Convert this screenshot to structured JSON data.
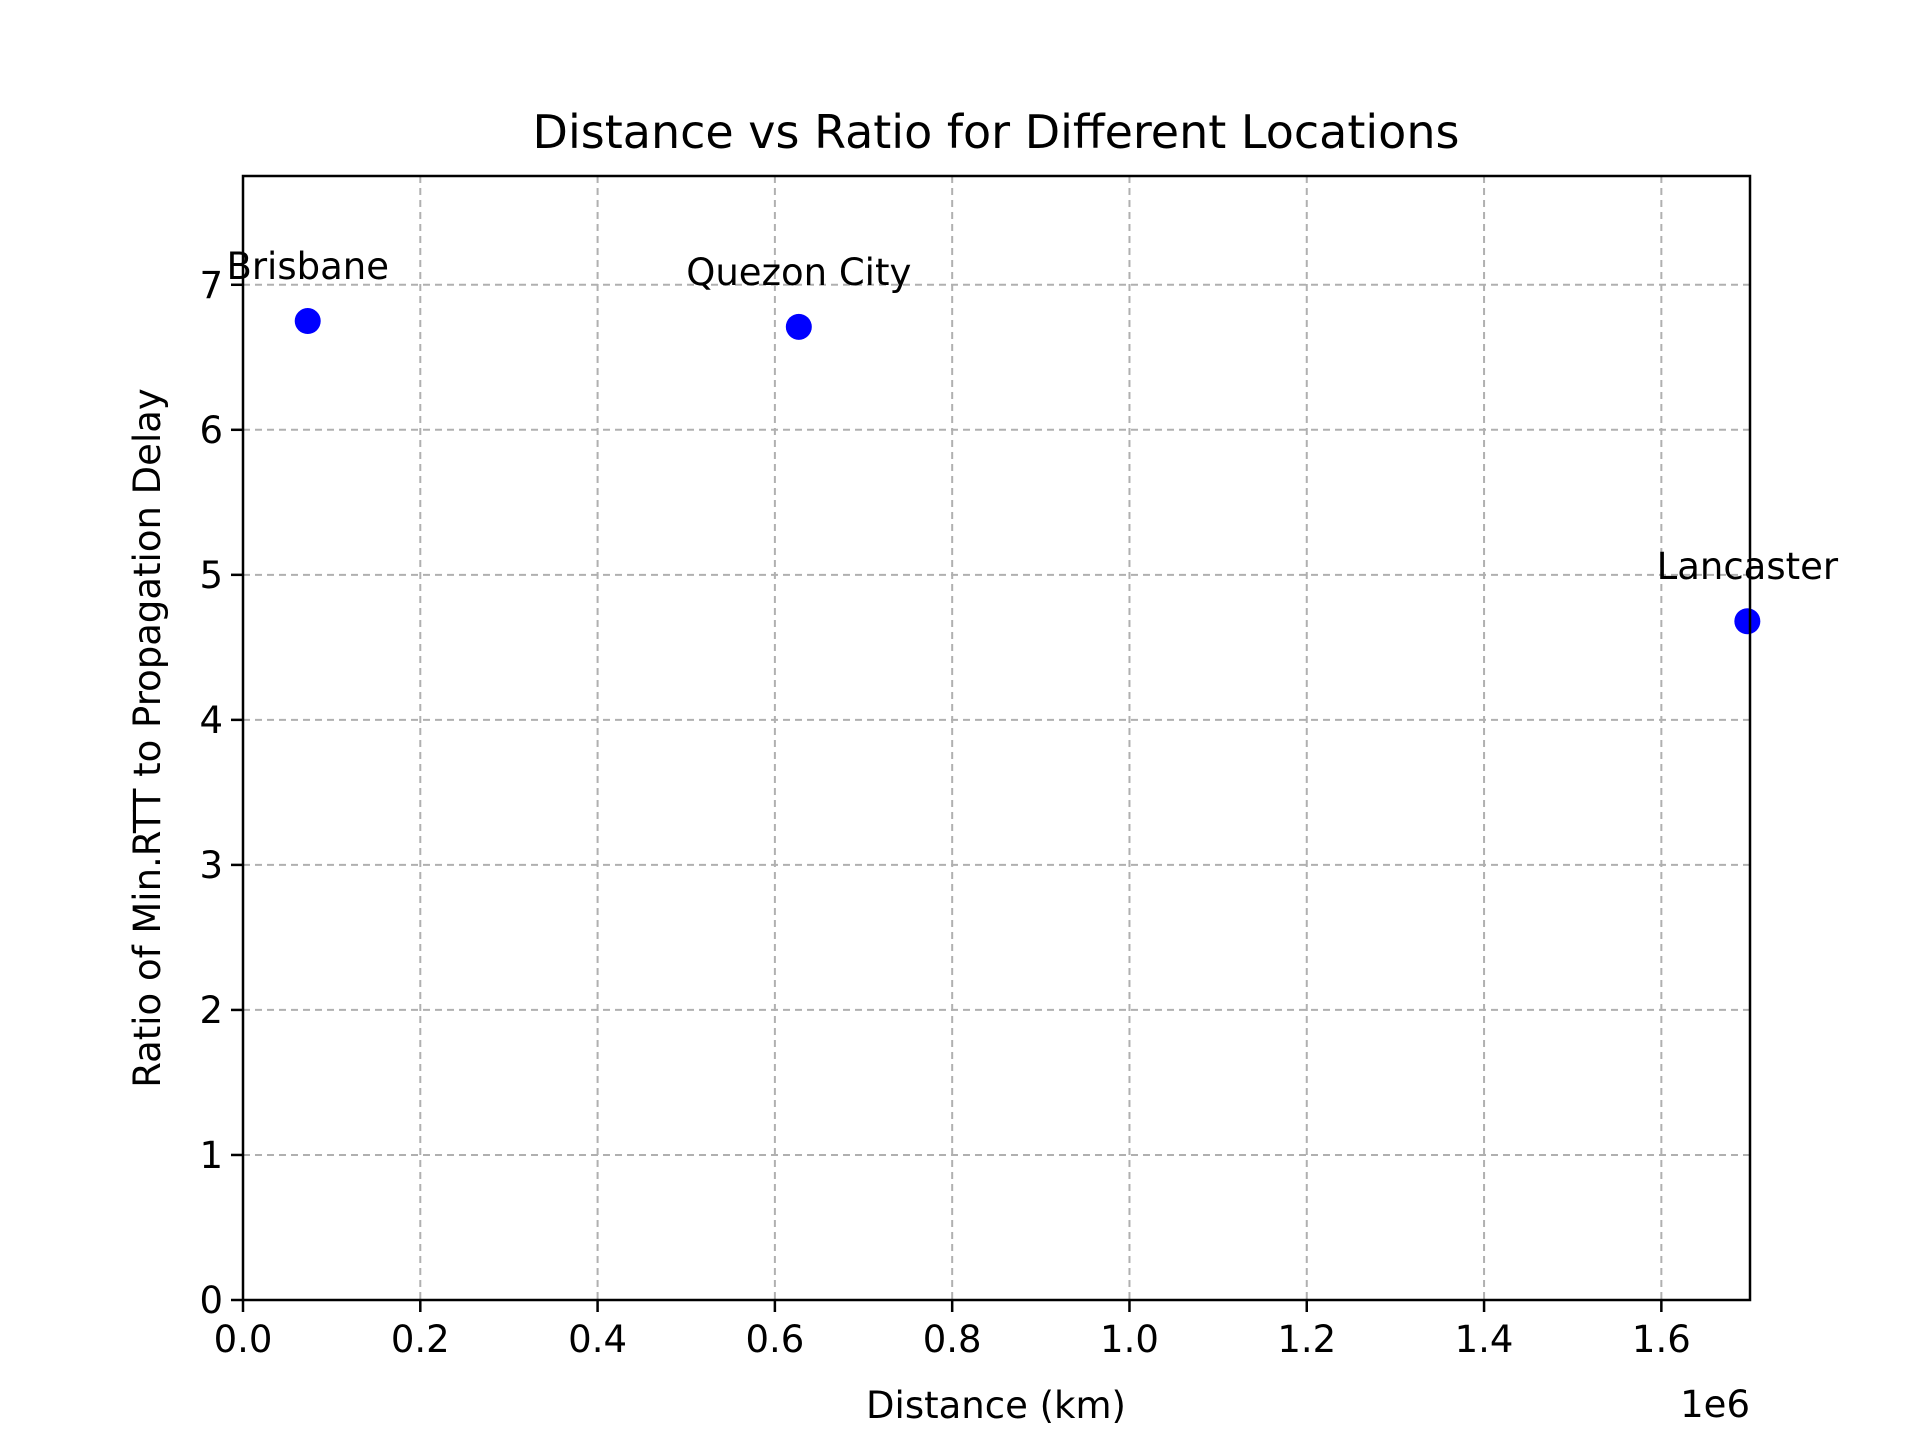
{
  "chart_data": {
    "type": "scatter",
    "title": "Distance vs Ratio for Different Locations",
    "xlabel": "Distance (km)",
    "ylabel": "Ratio of Min.RTT to Propagation Delay",
    "x_offset_text": "1e6",
    "xlim": [
      0,
      1700000
    ],
    "ylim": [
      0,
      7.75
    ],
    "xticks": [
      0,
      200000,
      400000,
      600000,
      800000,
      1000000,
      1200000,
      1400000,
      1600000
    ],
    "xtick_labels": [
      "0.0",
      "0.2",
      "0.4",
      "0.6",
      "0.8",
      "1.0",
      "1.2",
      "1.4",
      "1.6"
    ],
    "yticks": [
      0,
      1,
      2,
      3,
      4,
      5,
      6,
      7
    ],
    "ytick_labels": [
      "0",
      "1",
      "2",
      "3",
      "4",
      "5",
      "6",
      "7"
    ],
    "grid": true,
    "marker_color": "#0000ff",
    "points": [
      {
        "label": "Brisbane",
        "x": 73000,
        "y": 6.75
      },
      {
        "label": "Quezon City",
        "x": 627000,
        "y": 6.71
      },
      {
        "label": "Lancaster",
        "x": 1697000,
        "y": 4.68
      }
    ]
  }
}
